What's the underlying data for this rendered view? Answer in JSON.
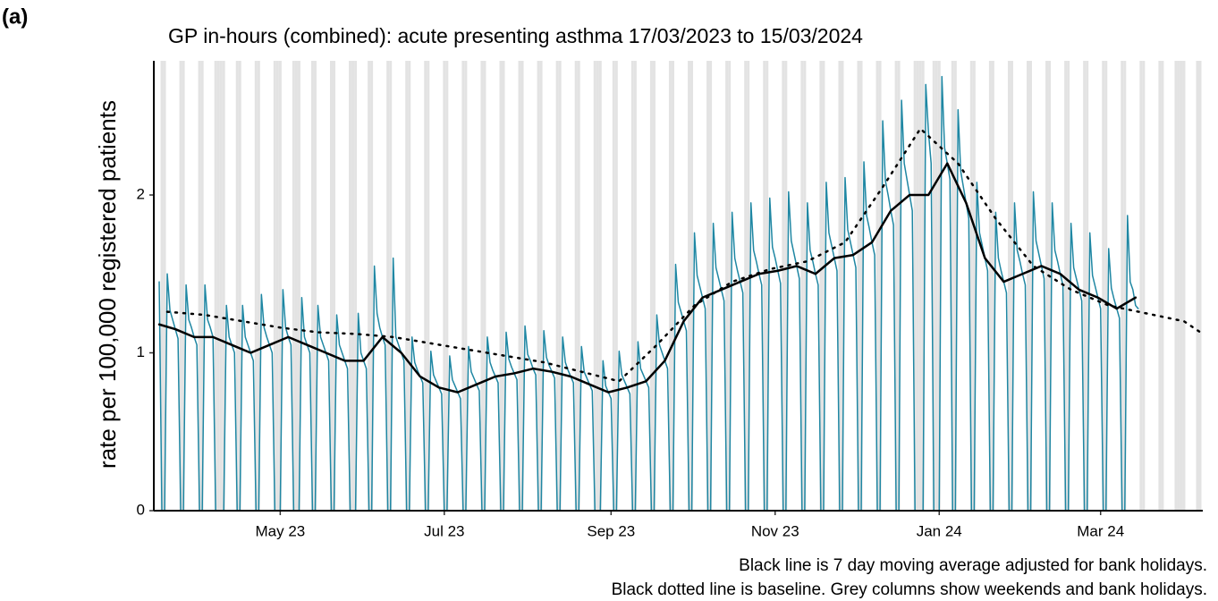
{
  "chart_data": {
    "type": "line",
    "panel_label": "(a)",
    "title": "GP in-hours (combined): acute presenting asthma 17/03/2023 to 15/03/2024",
    "y_label": "rate per 100,000 registered patients",
    "notes": [
      "Black line is 7 day moving average adjusted for bank holidays.",
      "Black dotted line is baseline. Grey columns show weekends and bank holidays."
    ],
    "xlim": [
      -2,
      388
    ],
    "ylim": [
      0,
      2.85
    ],
    "xticks": [
      {
        "value": 45,
        "label": "May 23"
      },
      {
        "value": 106,
        "label": "Jul 23"
      },
      {
        "value": 168,
        "label": "Sep 23"
      },
      {
        "value": 229,
        "label": "Nov 23"
      },
      {
        "value": 290,
        "label": "Jan 24"
      },
      {
        "value": 350,
        "label": "Mar 24"
      }
    ],
    "yticks": [
      0,
      1,
      2
    ],
    "shade_color": "#e3e3e3",
    "shaded_days": [
      1,
      2,
      8,
      9,
      15,
      16,
      21,
      22,
      23,
      24,
      29,
      30,
      36,
      37,
      43,
      44,
      45,
      50,
      51,
      52,
      57,
      58,
      64,
      65,
      71,
      72,
      73,
      78,
      79,
      85,
      86,
      92,
      93,
      99,
      100,
      106,
      107,
      113,
      114,
      120,
      121,
      127,
      128,
      134,
      135,
      141,
      142,
      148,
      149,
      155,
      156,
      162,
      163,
      164,
      169,
      170,
      176,
      177,
      183,
      184,
      190,
      191,
      197,
      198,
      204,
      205,
      211,
      212,
      218,
      219,
      225,
      226,
      232,
      233,
      239,
      240,
      246,
      247,
      253,
      254,
      260,
      261,
      267,
      268,
      274,
      275,
      281,
      282,
      283,
      284,
      288,
      289,
      290,
      295,
      296,
      302,
      303,
      309,
      310,
      316,
      317,
      323,
      324,
      330,
      331,
      337,
      338,
      344,
      345,
      351,
      352,
      358,
      359,
      365,
      366,
      372,
      373,
      378,
      379,
      380,
      381,
      386,
      387
    ],
    "series": [
      {
        "color": "#1f87a3",
        "width": 1.5,
        "dash": "none",
        "x": [
          0,
          1,
          2,
          3,
          4,
          5,
          6,
          7,
          8,
          9,
          10,
          11,
          12,
          13,
          14,
          15,
          16,
          17,
          18,
          19,
          20,
          21,
          22,
          23,
          24,
          25,
          26,
          27,
          28,
          29,
          30,
          31,
          32,
          33,
          34,
          35,
          36,
          37,
          38,
          39,
          40,
          41,
          42,
          43,
          44,
          45,
          46,
          47,
          48,
          49,
          50,
          51,
          52,
          53,
          54,
          55,
          56,
          57,
          58,
          59,
          60,
          61,
          62,
          63,
          64,
          65,
          66,
          67,
          68,
          69,
          70,
          71,
          72,
          73,
          74,
          75,
          76,
          77,
          78,
          79,
          80,
          81,
          82,
          83,
          84,
          85,
          86,
          87,
          88,
          89,
          90,
          91,
          92,
          93,
          94,
          95,
          96,
          97,
          98,
          99,
          100,
          101,
          102,
          103,
          104,
          105,
          106,
          107,
          108,
          109,
          110,
          111,
          112,
          113,
          114,
          115,
          116,
          117,
          118,
          119,
          120,
          121,
          122,
          123,
          124,
          125,
          126,
          127,
          128,
          129,
          130,
          131,
          132,
          133,
          134,
          135,
          136,
          137,
          138,
          139,
          140,
          141,
          142,
          143,
          144,
          145,
          146,
          147,
          148,
          149,
          150,
          151,
          152,
          153,
          154,
          155,
          156,
          157,
          158,
          159,
          160,
          161,
          162,
          163,
          164,
          165,
          166,
          167,
          168,
          169,
          170,
          171,
          172,
          173,
          174,
          175,
          176,
          177,
          178,
          179,
          180,
          181,
          182,
          183,
          184,
          185,
          186,
          187,
          188,
          189,
          190,
          191,
          192,
          193,
          194,
          195,
          196,
          197,
          198,
          199,
          200,
          201,
          202,
          203,
          204,
          205,
          206,
          207,
          208,
          209,
          210,
          211,
          212,
          213,
          214,
          215,
          216,
          217,
          218,
          219,
          220,
          221,
          222,
          223,
          224,
          225,
          226,
          227,
          228,
          229,
          230,
          231,
          232,
          233,
          234,
          235,
          236,
          237,
          238,
          239,
          240,
          241,
          242,
          243,
          244,
          245,
          246,
          247,
          248,
          249,
          250,
          251,
          252,
          253,
          254,
          255,
          256,
          257,
          258,
          259,
          260,
          261,
          262,
          263,
          264,
          265,
          266,
          267,
          268,
          269,
          270,
          271,
          272,
          273,
          274,
          275,
          276,
          277,
          278,
          279,
          280,
          281,
          282,
          283,
          284,
          285,
          286,
          287,
          288,
          289,
          290,
          291,
          292,
          293,
          294,
          295,
          296,
          297,
          298,
          299,
          300,
          301,
          302,
          303,
          304,
          305,
          306,
          307,
          308,
          309,
          310,
          311,
          312,
          313,
          314,
          315,
          316,
          317,
          318,
          319,
          320,
          321,
          322,
          323,
          324,
          325,
          326,
          327,
          328,
          329,
          330,
          331,
          332,
          333,
          334,
          335,
          336,
          337,
          338,
          339,
          340,
          341,
          342,
          343,
          344,
          345,
          346,
          347,
          348,
          349,
          350,
          351,
          352,
          353,
          354,
          355,
          356,
          357,
          358,
          359,
          360,
          361,
          362,
          363,
          364
        ],
        "values": [
          1.45,
          0,
          0,
          1.5,
          1.27,
          1.21,
          1.15,
          1.09,
          0,
          0,
          1.43,
          1.21,
          1.16,
          1.1,
          1.05,
          0,
          0,
          1.43,
          1.21,
          1.16,
          1.1,
          0,
          0,
          0,
          0,
          1.3,
          1.1,
          1.05,
          1.0,
          0,
          0,
          1.3,
          1.1,
          1.05,
          1.0,
          0.95,
          0,
          0,
          1.37,
          1.16,
          1.1,
          1.05,
          1.0,
          0,
          0,
          0,
          1.4,
          1.16,
          1.1,
          1.05,
          0,
          0,
          0,
          1.35,
          1.1,
          1.05,
          1.0,
          0,
          0,
          1.3,
          1.1,
          1.05,
          1.0,
          0.95,
          0,
          0,
          1.24,
          1.05,
          1.0,
          0.95,
          0.9,
          0,
          0,
          0,
          1.25,
          1.0,
          0.95,
          0.9,
          0,
          0,
          1.55,
          1.25,
          1.16,
          1.1,
          1.05,
          0,
          0,
          1.6,
          1.1,
          1.05,
          1.0,
          0.95,
          0,
          0,
          1.1,
          0.94,
          0.89,
          0.85,
          0.81,
          0,
          0,
          1.01,
          0.86,
          0.82,
          0.78,
          0.74,
          0,
          0,
          0.98,
          0.83,
          0.79,
          0.75,
          0.71,
          0,
          0,
          1.04,
          0.88,
          0.84,
          0.8,
          0.76,
          0,
          0,
          1.1,
          0.94,
          0.89,
          0.85,
          0.81,
          0,
          0,
          1.13,
          0.96,
          0.91,
          0.87,
          0.83,
          0,
          0,
          1.17,
          0.99,
          0.95,
          0.9,
          0.86,
          0,
          0,
          1.14,
          0.97,
          0.92,
          0.88,
          0.84,
          0,
          0,
          1.1,
          0.94,
          0.89,
          0.85,
          0.81,
          0,
          0,
          1.04,
          0.88,
          0.84,
          0.8,
          0.76,
          0,
          0,
          0,
          0.95,
          0.79,
          0.75,
          0.71,
          0,
          0,
          1.01,
          0.86,
          0.82,
          0.78,
          0.74,
          0,
          0,
          1.07,
          0.9,
          0.86,
          0.82,
          0.78,
          0,
          0,
          1.24,
          1.05,
          1.0,
          0.95,
          0.9,
          0,
          0,
          1.56,
          1.32,
          1.26,
          1.2,
          1.14,
          0,
          0,
          1.76,
          1.49,
          1.42,
          1.35,
          1.28,
          0,
          0,
          1.82,
          1.54,
          1.47,
          1.4,
          1.33,
          0,
          0,
          1.89,
          1.6,
          1.52,
          1.45,
          1.38,
          0,
          0,
          1.95,
          1.65,
          1.58,
          1.5,
          1.43,
          0,
          0,
          1.98,
          1.67,
          1.6,
          1.52,
          1.44,
          0,
          0,
          2.02,
          1.71,
          1.63,
          1.55,
          1.47,
          0,
          0,
          1.95,
          1.65,
          1.58,
          1.5,
          1.43,
          0,
          0,
          2.08,
          1.76,
          1.68,
          1.6,
          1.52,
          0,
          0,
          2.11,
          1.78,
          1.7,
          1.62,
          1.54,
          0,
          0,
          2.21,
          1.87,
          1.79,
          1.7,
          1.62,
          0,
          0,
          2.47,
          2.09,
          2.0,
          1.9,
          1.81,
          0,
          0,
          2.6,
          2.2,
          2.1,
          2.0,
          1.9,
          0,
          0,
          0,
          0,
          2.7,
          2.4,
          2.2,
          0,
          0,
          0,
          2.75,
          2.3,
          2.2,
          2.1,
          0,
          0,
          2.54,
          2.15,
          2.05,
          1.95,
          1.85,
          0,
          0,
          2.08,
          1.76,
          1.68,
          1.6,
          1.52,
          0,
          0,
          1.89,
          1.6,
          1.52,
          1.45,
          1.38,
          0,
          0,
          1.95,
          1.65,
          1.58,
          1.5,
          1.43,
          0,
          0,
          2.02,
          1.71,
          1.63,
          1.55,
          1.47,
          0,
          0,
          1.95,
          1.65,
          1.58,
          1.5,
          1.43,
          0,
          0,
          1.82,
          1.54,
          1.47,
          1.4,
          1.33,
          0,
          0,
          1.76,
          1.49,
          1.42,
          1.35,
          1.28,
          0,
          0,
          1.66,
          1.41,
          1.34,
          1.28,
          1.22,
          0,
          0,
          1.87,
          1.45,
          1.4,
          1.3,
          1.28
        ]
      },
      {
        "color": "#000000",
        "width": 2.5,
        "dash": "none",
        "x": [
          0,
          6,
          13,
          20,
          27,
          34,
          41,
          48,
          55,
          62,
          69,
          76,
          83,
          90,
          97,
          104,
          111,
          118,
          125,
          132,
          139,
          146,
          153,
          160,
          167,
          174,
          181,
          188,
          195,
          202,
          209,
          216,
          223,
          230,
          237,
          244,
          251,
          258,
          265,
          272,
          279,
          286,
          293,
          300,
          307,
          314,
          321,
          328,
          335,
          342,
          349,
          356,
          363
        ],
        "values": [
          1.18,
          1.15,
          1.1,
          1.1,
          1.05,
          1.0,
          1.05,
          1.1,
          1.05,
          1.0,
          0.95,
          0.95,
          1.1,
          1.0,
          0.85,
          0.78,
          0.75,
          0.8,
          0.85,
          0.87,
          0.9,
          0.88,
          0.85,
          0.8,
          0.75,
          0.78,
          0.82,
          0.95,
          1.2,
          1.35,
          1.4,
          1.45,
          1.5,
          1.52,
          1.55,
          1.5,
          1.6,
          1.62,
          1.7,
          1.9,
          2.0,
          2.0,
          2.2,
          1.95,
          1.6,
          1.45,
          1.5,
          1.55,
          1.5,
          1.4,
          1.35,
          1.28,
          1.35
        ]
      },
      {
        "color": "#000000",
        "width": 2.5,
        "dash": "2,7",
        "x": [
          3,
          17,
          31,
          45,
          59,
          73,
          87,
          101,
          115,
          129,
          143,
          157,
          171,
          185,
          199,
          213,
          227,
          241,
          255,
          269,
          283,
          297,
          311,
          325,
          339,
          353,
          367,
          381,
          388
        ],
        "values": [
          1.26,
          1.24,
          1.2,
          1.16,
          1.13,
          1.12,
          1.1,
          1.06,
          1.02,
          0.98,
          0.94,
          0.88,
          0.82,
          1.05,
          1.3,
          1.45,
          1.53,
          1.58,
          1.7,
          2.05,
          2.42,
          2.2,
          1.85,
          1.55,
          1.4,
          1.3,
          1.25,
          1.2,
          1.12
        ]
      }
    ]
  }
}
